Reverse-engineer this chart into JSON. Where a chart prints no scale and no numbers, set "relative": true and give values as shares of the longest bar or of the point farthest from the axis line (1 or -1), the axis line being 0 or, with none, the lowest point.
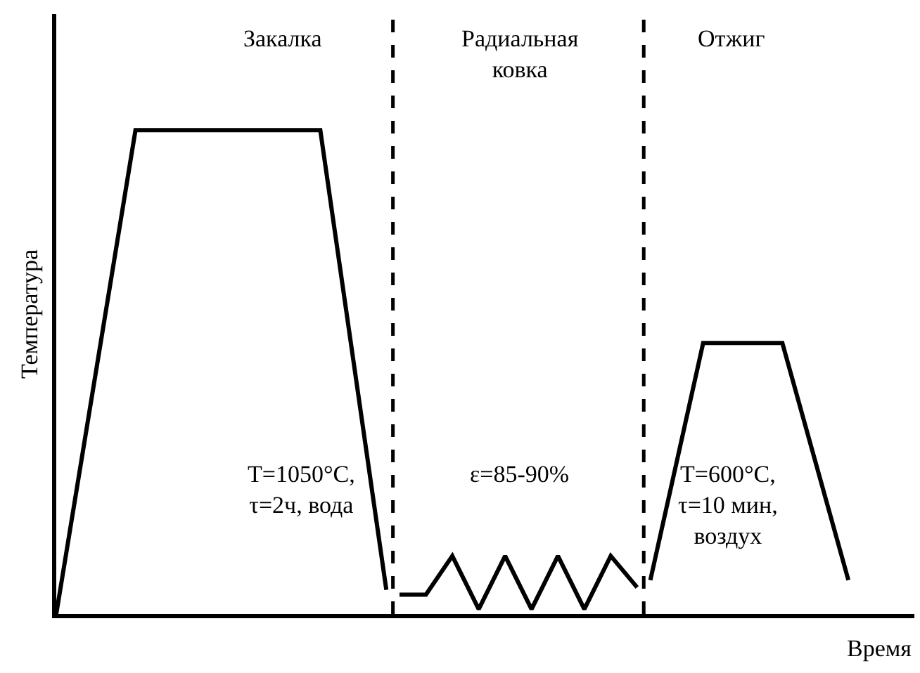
{
  "chart_data": {
    "type": "line",
    "relative": true,
    "xlabel": "Время",
    "ylabel": "Температура",
    "marker": "none",
    "line_style": "solid",
    "categories": [
      null,
      null,
      null,
      null,
      null,
      null,
      null,
      null,
      null,
      null,
      null,
      null,
      null,
      null,
      null,
      null,
      null,
      null,
      null,
      null,
      null,
      null,
      null,
      null,
      null,
      null,
      null,
      null,
      null,
      null,
      null,
      null,
      null,
      null,
      null,
      null,
      null,
      null,
      null,
      null,
      null,
      null,
      null,
      null,
      null,
      null,
      null,
      null,
      null,
      null,
      null,
      null,
      null,
      null,
      null,
      null,
      null,
      null,
      null,
      null,
      null,
      null,
      null,
      null,
      null,
      null
    ],
    "series": [
      {
        "color": "#000000",
        "values": [
          0,
          null,
          null,
          null,
          null,
          null,
          1,
          null,
          null,
          null,
          null,
          null,
          null,
          null,
          null,
          null,
          null,
          null,
          null,
          null,
          1,
          null,
          null,
          null,
          null,
          0.05,
          null,
          null,
          null,
          null,
          null,
          null,
          null,
          null,
          null,
          null,
          null,
          null,
          null,
          null,
          null,
          null,
          null,
          null,
          null,
          null,
          null,
          null,
          null,
          null,
          null,
          null,
          null,
          null,
          null,
          null,
          null,
          null,
          null,
          null,
          null,
          null,
          null,
          null,
          null,
          null
        ]
      },
      {
        "color": "#000000",
        "values": [
          null,
          null,
          null,
          null,
          null,
          null,
          null,
          null,
          null,
          null,
          null,
          null,
          null,
          null,
          null,
          null,
          null,
          null,
          null,
          null,
          null,
          null,
          null,
          null,
          null,
          null,
          0.04,
          null,
          0.04,
          null,
          0.12,
          null,
          0.01,
          null,
          0.12,
          null,
          0.01,
          null,
          0.12,
          null,
          0.01,
          null,
          0.12,
          null,
          0.055,
          null,
          null,
          null,
          null,
          null,
          null,
          null,
          null,
          null,
          null,
          null,
          null,
          null,
          null,
          null,
          null,
          null,
          null,
          null,
          null,
          null
        ]
      },
      {
        "color": "#000000",
        "values": [
          null,
          null,
          null,
          null,
          null,
          null,
          null,
          null,
          null,
          null,
          null,
          null,
          null,
          null,
          null,
          null,
          null,
          null,
          null,
          null,
          null,
          null,
          null,
          null,
          null,
          null,
          null,
          null,
          null,
          null,
          null,
          null,
          null,
          null,
          null,
          null,
          null,
          null,
          null,
          null,
          null,
          null,
          null,
          null,
          null,
          0.07,
          null,
          null,
          null,
          0.56,
          null,
          null,
          null,
          null,
          null,
          0.56,
          null,
          null,
          null,
          null,
          0.07,
          null,
          null,
          null,
          null,
          null
        ]
      }
    ],
    "annotations": [
      "Закалка",
      "Радиальная\nковка",
      "Отжиг",
      "T=1050°C,\nτ=2ч, вода",
      "ε=85-90%",
      "T=600°C,\nτ=10 мин,\nвоздух"
    ]
  }
}
